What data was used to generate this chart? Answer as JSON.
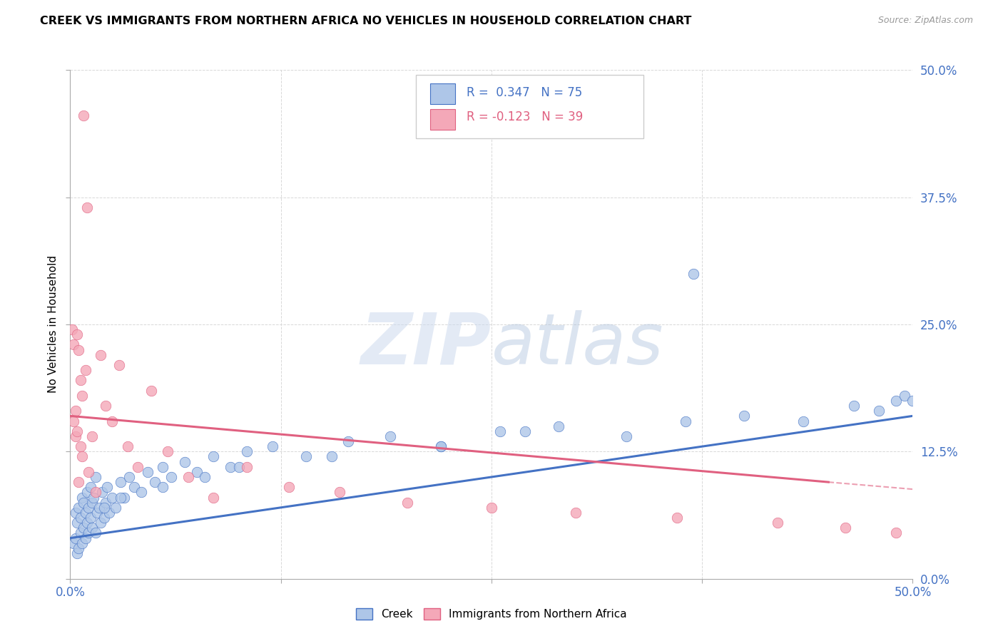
{
  "title": "CREEK VS IMMIGRANTS FROM NORTHERN AFRICA NO VEHICLES IN HOUSEHOLD CORRELATION CHART",
  "source": "Source: ZipAtlas.com",
  "ylabel": "No Vehicles in Household",
  "xlim": [
    0.0,
    50.0
  ],
  "ylim": [
    0.0,
    50.0
  ],
  "ytick_vals": [
    0.0,
    12.5,
    25.0,
    37.5,
    50.0
  ],
  "xtick_vals": [
    0.0,
    12.5,
    25.0,
    37.5,
    50.0
  ],
  "legend_label1": "Creek",
  "legend_label2": "Immigrants from Northern Africa",
  "color_blue": "#aec6e8",
  "color_pink": "#f4a8b8",
  "line_color_blue": "#4472c4",
  "line_color_pink": "#e06080",
  "creek_R": 0.347,
  "creek_N": 75,
  "imm_R": -0.123,
  "imm_N": 39,
  "background_color": "#ffffff",
  "grid_color": "#d8d8d8",
  "creek_x": [
    0.2,
    0.3,
    0.3,
    0.4,
    0.4,
    0.5,
    0.5,
    0.6,
    0.6,
    0.7,
    0.7,
    0.8,
    0.8,
    0.9,
    0.9,
    1.0,
    1.0,
    1.1,
    1.1,
    1.2,
    1.2,
    1.3,
    1.3,
    1.4,
    1.5,
    1.5,
    1.6,
    1.7,
    1.8,
    1.9,
    2.0,
    2.1,
    2.2,
    2.3,
    2.5,
    2.7,
    3.0,
    3.2,
    3.5,
    3.8,
    4.2,
    4.6,
    5.0,
    5.5,
    6.0,
    6.8,
    7.5,
    8.5,
    9.5,
    10.5,
    12.0,
    14.0,
    16.5,
    19.0,
    22.0,
    25.5,
    29.0,
    33.0,
    36.5,
    40.0,
    43.5,
    46.5,
    48.0,
    49.0,
    49.5,
    50.0,
    37.0,
    27.0,
    22.0,
    15.5,
    10.0,
    8.0,
    5.5,
    3.0,
    2.0
  ],
  "creek_y": [
    3.5,
    4.0,
    6.5,
    2.5,
    5.5,
    3.0,
    7.0,
    4.5,
    6.0,
    3.5,
    8.0,
    5.0,
    7.5,
    4.0,
    6.5,
    5.5,
    8.5,
    4.5,
    7.0,
    6.0,
    9.0,
    5.0,
    7.5,
    8.0,
    4.5,
    10.0,
    6.5,
    7.0,
    5.5,
    8.5,
    6.0,
    7.5,
    9.0,
    6.5,
    8.0,
    7.0,
    9.5,
    8.0,
    10.0,
    9.0,
    8.5,
    10.5,
    9.5,
    11.0,
    10.0,
    11.5,
    10.5,
    12.0,
    11.0,
    12.5,
    13.0,
    12.0,
    13.5,
    14.0,
    13.0,
    14.5,
    15.0,
    14.0,
    15.5,
    16.0,
    15.5,
    17.0,
    16.5,
    17.5,
    18.0,
    17.5,
    30.0,
    14.5,
    13.0,
    12.0,
    11.0,
    10.0,
    9.0,
    8.0,
    7.0
  ],
  "imm_x": [
    0.1,
    0.2,
    0.2,
    0.3,
    0.3,
    0.4,
    0.4,
    0.5,
    0.5,
    0.6,
    0.6,
    0.7,
    0.7,
    0.8,
    0.9,
    1.0,
    1.1,
    1.3,
    1.5,
    1.8,
    2.1,
    2.5,
    2.9,
    3.4,
    4.0,
    4.8,
    5.8,
    7.0,
    8.5,
    10.5,
    13.0,
    16.0,
    20.0,
    25.0,
    30.0,
    36.0,
    42.0,
    46.0,
    49.0
  ],
  "imm_y": [
    24.5,
    15.5,
    23.0,
    14.0,
    16.5,
    24.0,
    14.5,
    22.5,
    9.5,
    19.5,
    13.0,
    18.0,
    12.0,
    45.5,
    20.5,
    36.5,
    10.5,
    14.0,
    8.5,
    22.0,
    17.0,
    15.5,
    21.0,
    13.0,
    11.0,
    18.5,
    12.5,
    10.0,
    8.0,
    11.0,
    9.0,
    8.5,
    7.5,
    7.0,
    6.5,
    6.0,
    5.5,
    5.0,
    4.5
  ]
}
